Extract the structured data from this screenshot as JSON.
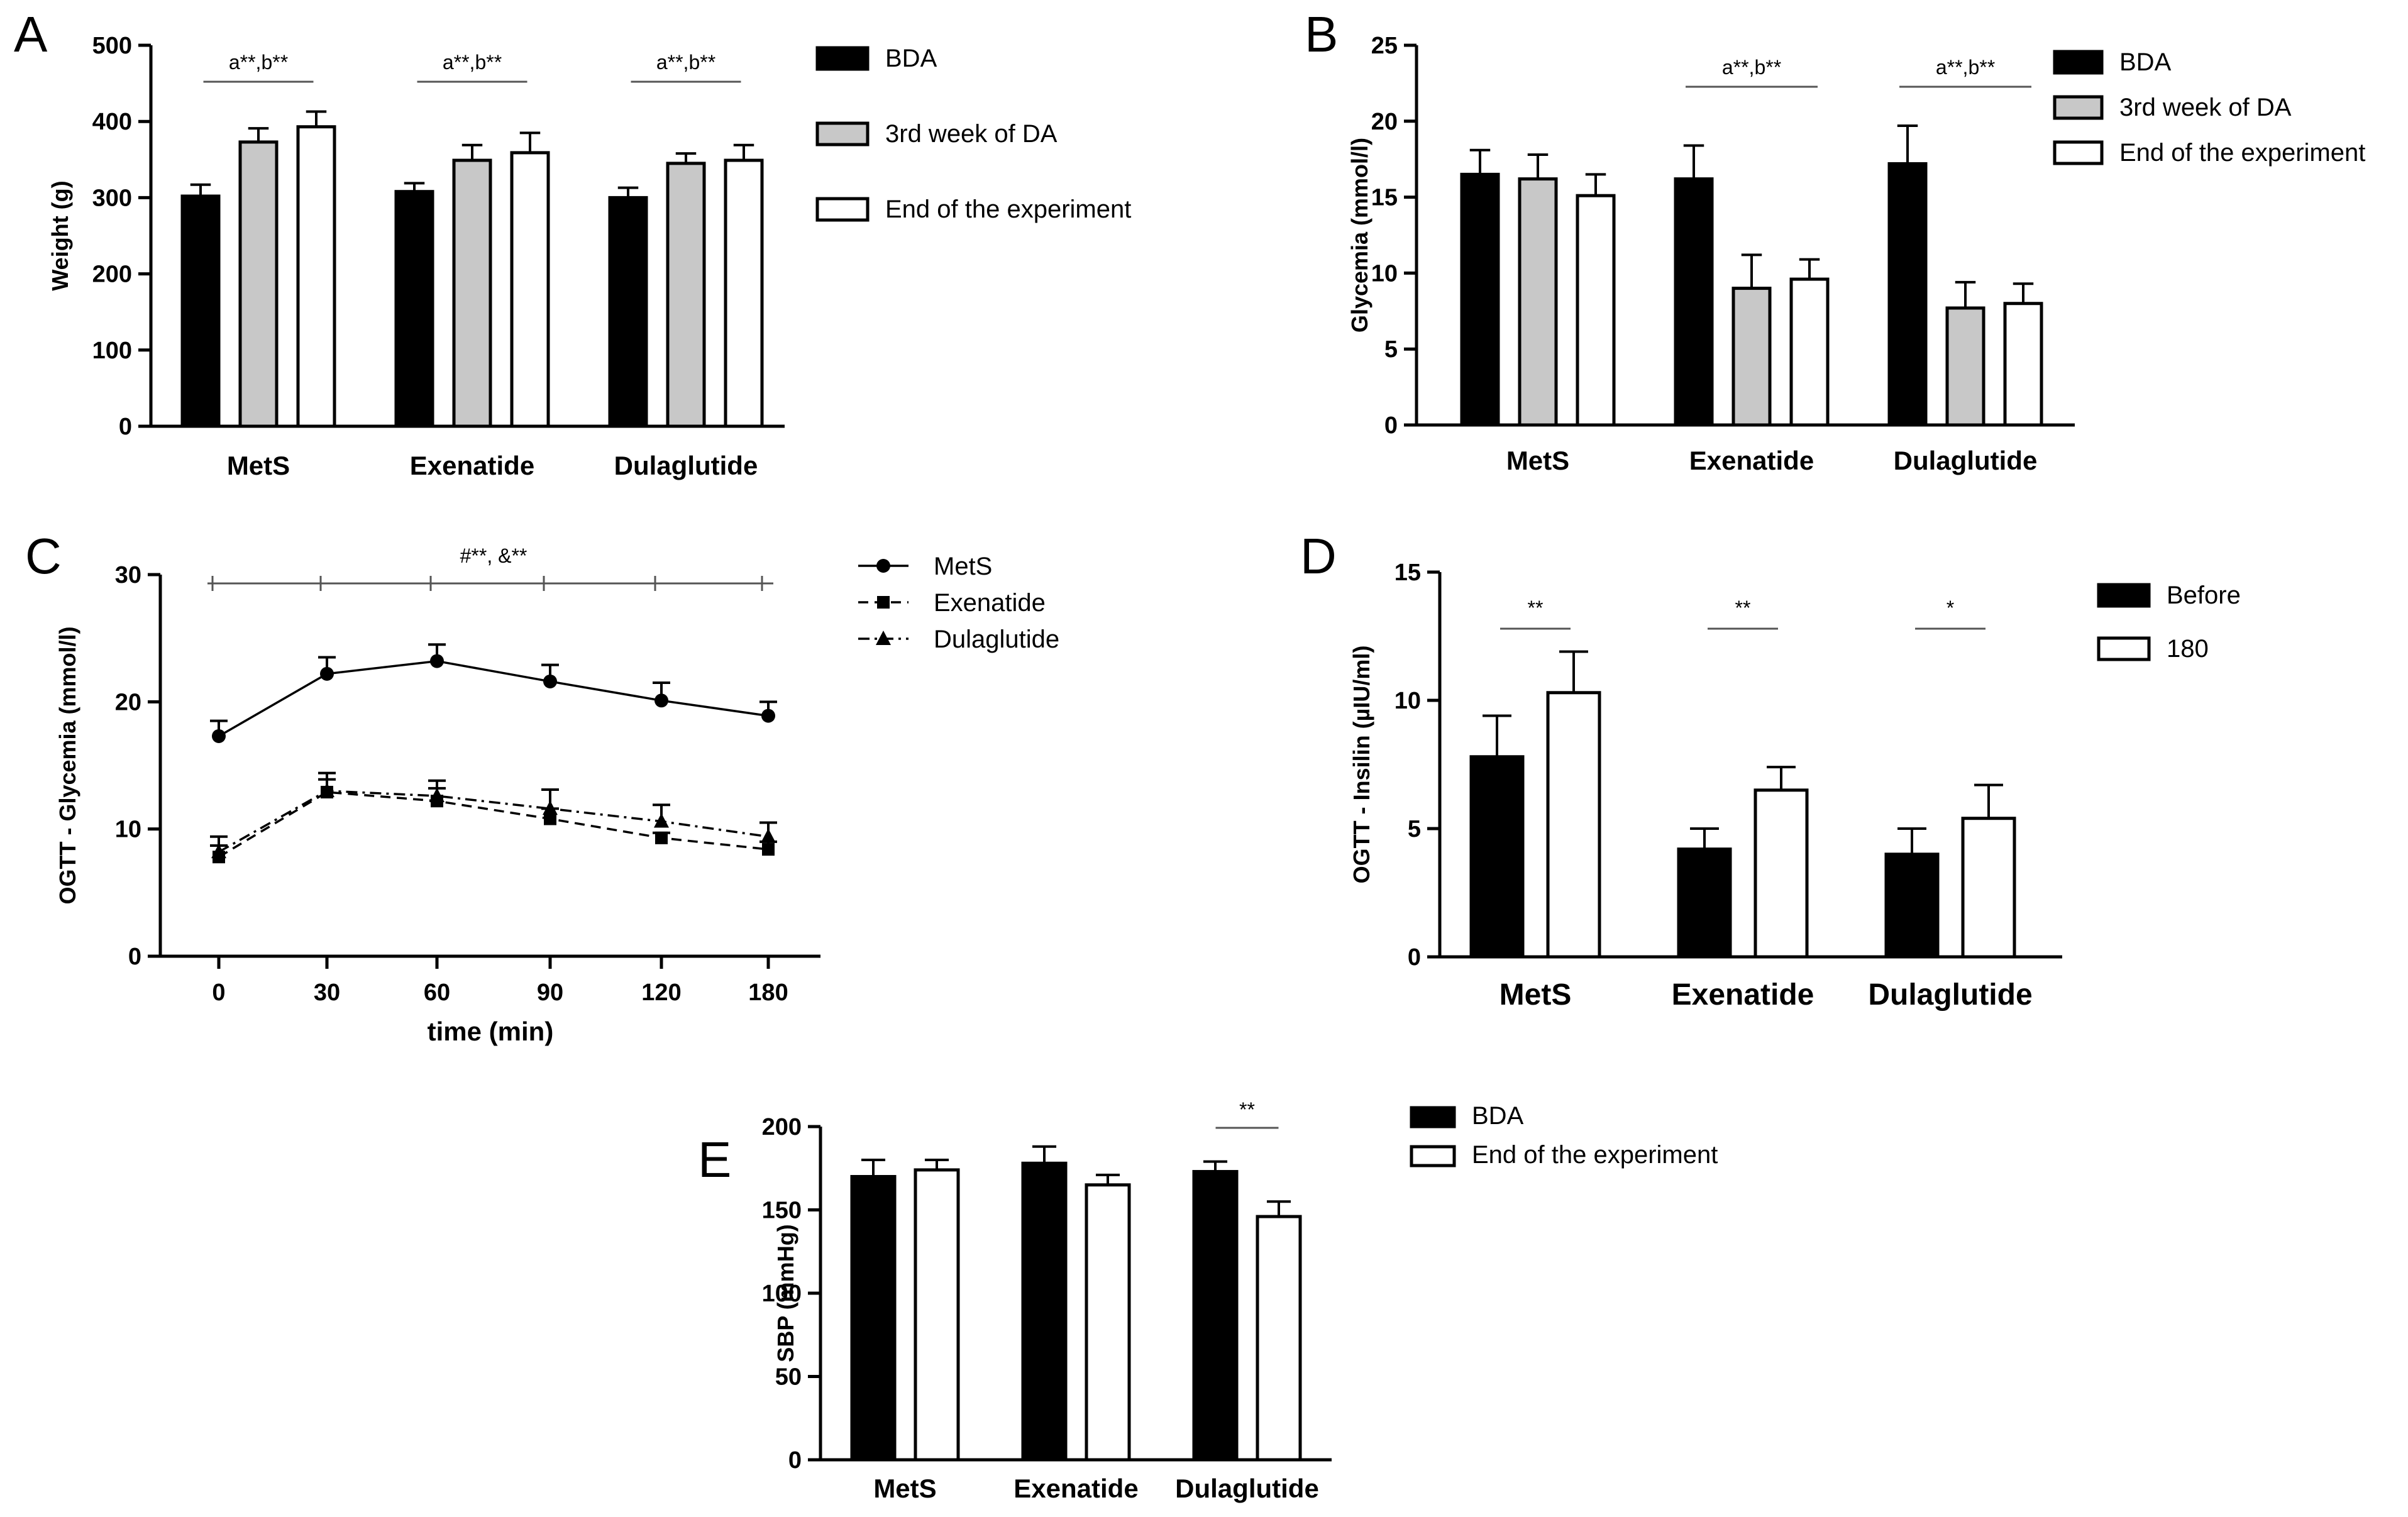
{
  "colors": {
    "black_bar": "#000000",
    "gray_bar": "#c8c8c8",
    "white_bar": "#ffffff",
    "axis": "#000000"
  },
  "chart_data": [
    {
      "panel": "A",
      "type": "bar",
      "ylabel": "Weight (g)",
      "ylim": [
        0,
        500
      ],
      "yticks": [
        0,
        100,
        200,
        300,
        400,
        500
      ],
      "categories": [
        "MetS",
        "Exenatide",
        "Dulaglutide"
      ],
      "series": [
        {
          "name": "BDA",
          "color": "#000000",
          "values": [
            302,
            308,
            300
          ],
          "errors": [
            15,
            11,
            13
          ]
        },
        {
          "name": "3rd week of DA",
          "color": "#c8c8c8",
          "values": [
            373,
            349,
            345
          ],
          "errors": [
            18,
            20,
            13
          ]
        },
        {
          "name": "End of the experiment",
          "color": "#ffffff",
          "values": [
            393,
            359,
            349
          ],
          "errors": [
            20,
            26,
            20
          ]
        }
      ],
      "annotations": [
        "a**,b**",
        "a**,b**",
        "a**,b**"
      ],
      "legend_position": "right"
    },
    {
      "panel": "B",
      "type": "bar",
      "ylabel": "Glycemia (mmol/l)",
      "ylim": [
        0,
        25
      ],
      "yticks": [
        0,
        5,
        10,
        15,
        20,
        25
      ],
      "categories": [
        "MetS",
        "Exenatide",
        "Dulaglutide"
      ],
      "series": [
        {
          "name": "BDA",
          "color": "#000000",
          "values": [
            16.5,
            16.2,
            17.2
          ],
          "errors": [
            1.6,
            2.2,
            2.5
          ]
        },
        {
          "name": "3rd week of DA",
          "color": "#c8c8c8",
          "values": [
            16.2,
            9.0,
            7.7
          ],
          "errors": [
            1.6,
            2.2,
            1.7
          ]
        },
        {
          "name": "End of the experiment",
          "color": "#ffffff",
          "values": [
            15.1,
            9.6,
            8.0
          ],
          "errors": [
            1.4,
            1.3,
            1.3
          ]
        }
      ],
      "annotations": [
        "",
        "a**,b**",
        "a**,b**"
      ],
      "legend_position": "right"
    },
    {
      "panel": "C",
      "type": "line",
      "ylabel": "OGTT - Glycemia (mmol/l)",
      "xlabel": "time (min)",
      "ylim": [
        0,
        30
      ],
      "yticks": [
        0,
        10,
        20,
        30
      ],
      "x": [
        0,
        30,
        60,
        90,
        120,
        180
      ],
      "x_tick_labels": [
        "0",
        "30",
        "60",
        "90",
        "120",
        "180"
      ],
      "series": [
        {
          "name": "MetS",
          "marker": "circle",
          "dash": "solid",
          "values": [
            17.3,
            22.2,
            23.2,
            21.6,
            20.1,
            18.9
          ],
          "errors": [
            1.2,
            1.3,
            1.3,
            1.3,
            1.4,
            1.1
          ]
        },
        {
          "name": "Exenatide",
          "marker": "square",
          "dash": "dashed",
          "values": [
            7.8,
            12.9,
            12.2,
            10.8,
            9.3,
            8.4
          ],
          "errors": [
            0.9,
            1.0,
            1.0,
            0.8,
            0.4,
            0.6
          ]
        },
        {
          "name": "Dulaglutide",
          "marker": "triangle",
          "dash": "dashdot",
          "values": [
            8.2,
            13.0,
            12.6,
            11.6,
            10.6,
            9.4
          ],
          "errors": [
            1.2,
            1.4,
            1.2,
            1.5,
            1.3,
            1.1
          ]
        }
      ],
      "annotation": "#**, &**",
      "legend_position": "right"
    },
    {
      "panel": "D",
      "type": "bar",
      "ylabel": "OGTT - Insilin (µIU/ml)",
      "ylim": [
        0,
        15
      ],
      "yticks": [
        0,
        5,
        10,
        15
      ],
      "categories": [
        "MetS",
        "Exenatide",
        "Dulaglutide"
      ],
      "series": [
        {
          "name": "Before",
          "color": "#000000",
          "values": [
            7.8,
            4.2,
            4.0
          ],
          "errors": [
            1.6,
            0.8,
            1.0
          ]
        },
        {
          "name": "180",
          "color": "#ffffff",
          "values": [
            10.3,
            6.5,
            5.4
          ],
          "errors": [
            1.6,
            0.9,
            1.3
          ]
        }
      ],
      "annotations": [
        "**",
        "**",
        "*"
      ],
      "legend_position": "right"
    },
    {
      "panel": "E",
      "type": "bar",
      "ylabel": "SBP (mmHg)",
      "ylim": [
        0,
        200
      ],
      "yticks": [
        0,
        50,
        100,
        150,
        200
      ],
      "categories": [
        "MetS",
        "Exenatide",
        "Dulaglutide"
      ],
      "series": [
        {
          "name": "BDA",
          "color": "#000000",
          "values": [
            170,
            178,
            173
          ],
          "errors": [
            10,
            10,
            6
          ]
        },
        {
          "name": "End of the experiment",
          "color": "#ffffff",
          "values": [
            174,
            165,
            146
          ],
          "errors": [
            6,
            6,
            9
          ]
        }
      ],
      "annotations": [
        "",
        "",
        "**"
      ],
      "legend_position": "right"
    }
  ]
}
